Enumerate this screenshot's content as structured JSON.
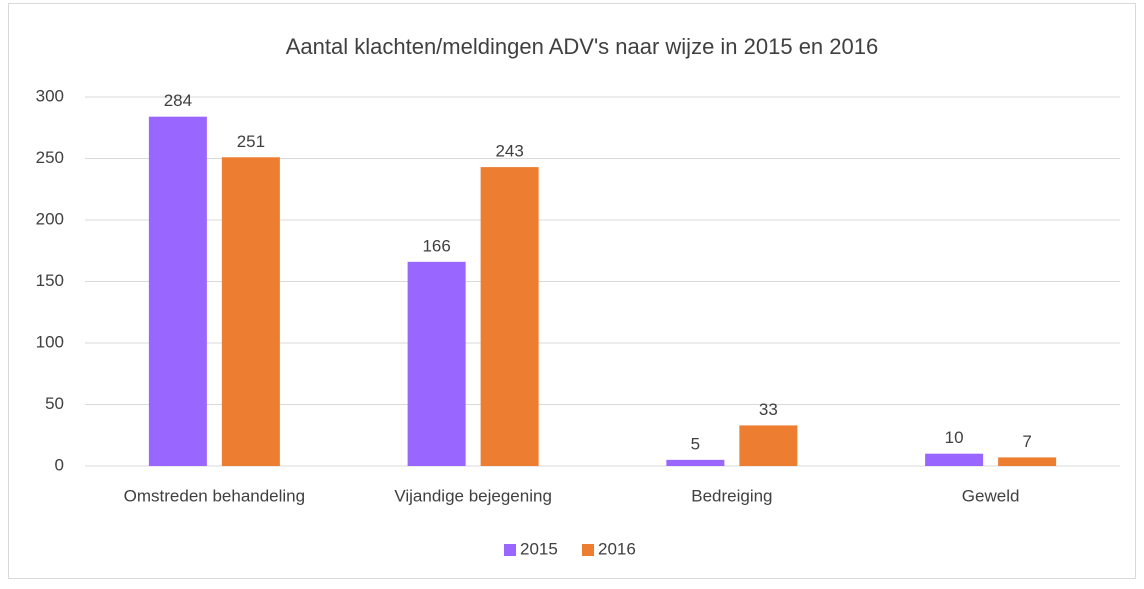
{
  "chart_data": {
    "type": "bar",
    "title": "Aantal klachten/meldingen ADV's naar wijze in 2015 en 2016",
    "categories": [
      "Omstreden behandeling",
      "Vijandige bejegening",
      "Bedreiging",
      "Geweld"
    ],
    "series": [
      {
        "name": "2015",
        "color": "#9966ff",
        "values": [
          284,
          166,
          5,
          10
        ]
      },
      {
        "name": "2016",
        "color": "#ed7d31",
        "values": [
          251,
          243,
          33,
          7
        ]
      }
    ],
    "ylim": [
      0,
      300
    ],
    "yticks": [
      0,
      50,
      100,
      150,
      200,
      250,
      300
    ],
    "grid": true,
    "legend": "bottom"
  }
}
